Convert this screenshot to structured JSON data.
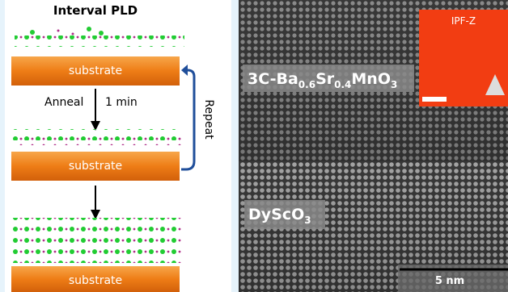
{
  "left_panel": {
    "title": "Interval PLD",
    "substrates": [
      "substrate",
      "substrate",
      "substrate"
    ],
    "anneal": "Anneal",
    "time": "1 min",
    "repeat": "Repeat"
  },
  "image_panel": {
    "film_label": [
      "3C-Ba",
      "0.6",
      "Sr",
      "0.4",
      "MnO",
      "3"
    ],
    "substrate_label": [
      "DyScO",
      "3"
    ],
    "inset_title": "IPF-Z",
    "scale_bar": "5 nm"
  }
}
